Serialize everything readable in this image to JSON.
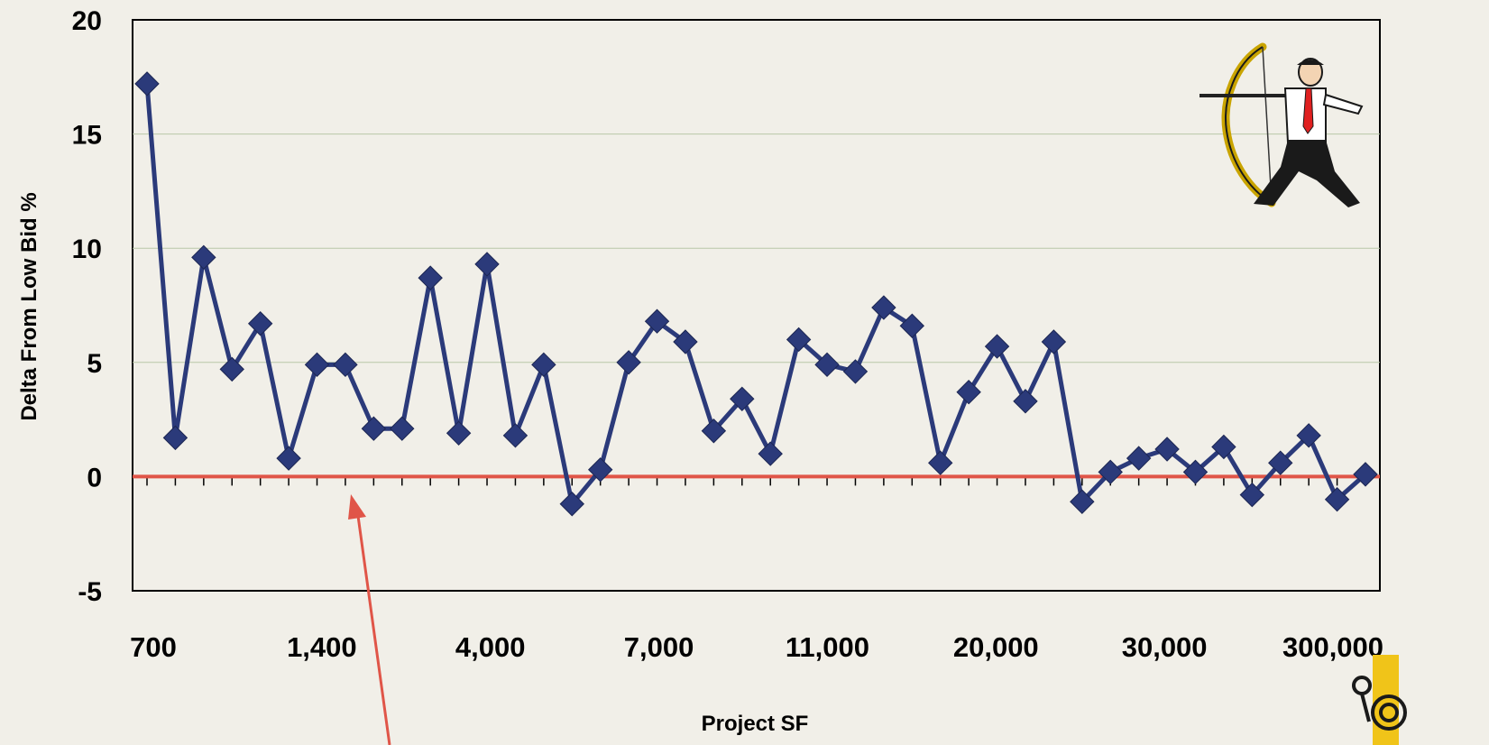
{
  "chart_data": {
    "type": "line",
    "title": "",
    "xlabel": "Project SF",
    "ylabel": "Delta From Low Bid %",
    "ylim": [
      -5,
      20
    ],
    "y_ticks": [
      "20",
      "15",
      "10",
      "5",
      "0",
      "-5"
    ],
    "x_tick_labels": [
      "700",
      "1,400",
      "4,000",
      "7,000",
      "11,000",
      "20,000",
      "30,000",
      "300,000"
    ],
    "grid": "horizontal",
    "reference_line": {
      "y": 0,
      "color": "#e05548"
    },
    "series": [
      {
        "color": "#2b3a7a",
        "marker": "diamond",
        "values": [
          17.2,
          1.7,
          9.6,
          4.7,
          6.7,
          0.8,
          4.9,
          4.9,
          2.1,
          2.1,
          8.7,
          1.9,
          9.3,
          1.8,
          4.9,
          -1.2,
          0.3,
          5.0,
          6.8,
          5.9,
          2.0,
          3.4,
          1.0,
          6.0,
          4.9,
          4.6,
          7.4,
          6.6,
          0.6,
          3.7,
          5.7,
          3.3,
          5.9,
          -1.1,
          0.2,
          0.8,
          1.2,
          0.2,
          1.3,
          -0.8,
          0.6,
          1.8,
          -1.0,
          0.1
        ]
      }
    ]
  },
  "decorations": {
    "archer_icon": "archer-with-bow-icon",
    "annotation_arrow_color": "#e05548",
    "logo_icon": "corner-logo-icon"
  }
}
